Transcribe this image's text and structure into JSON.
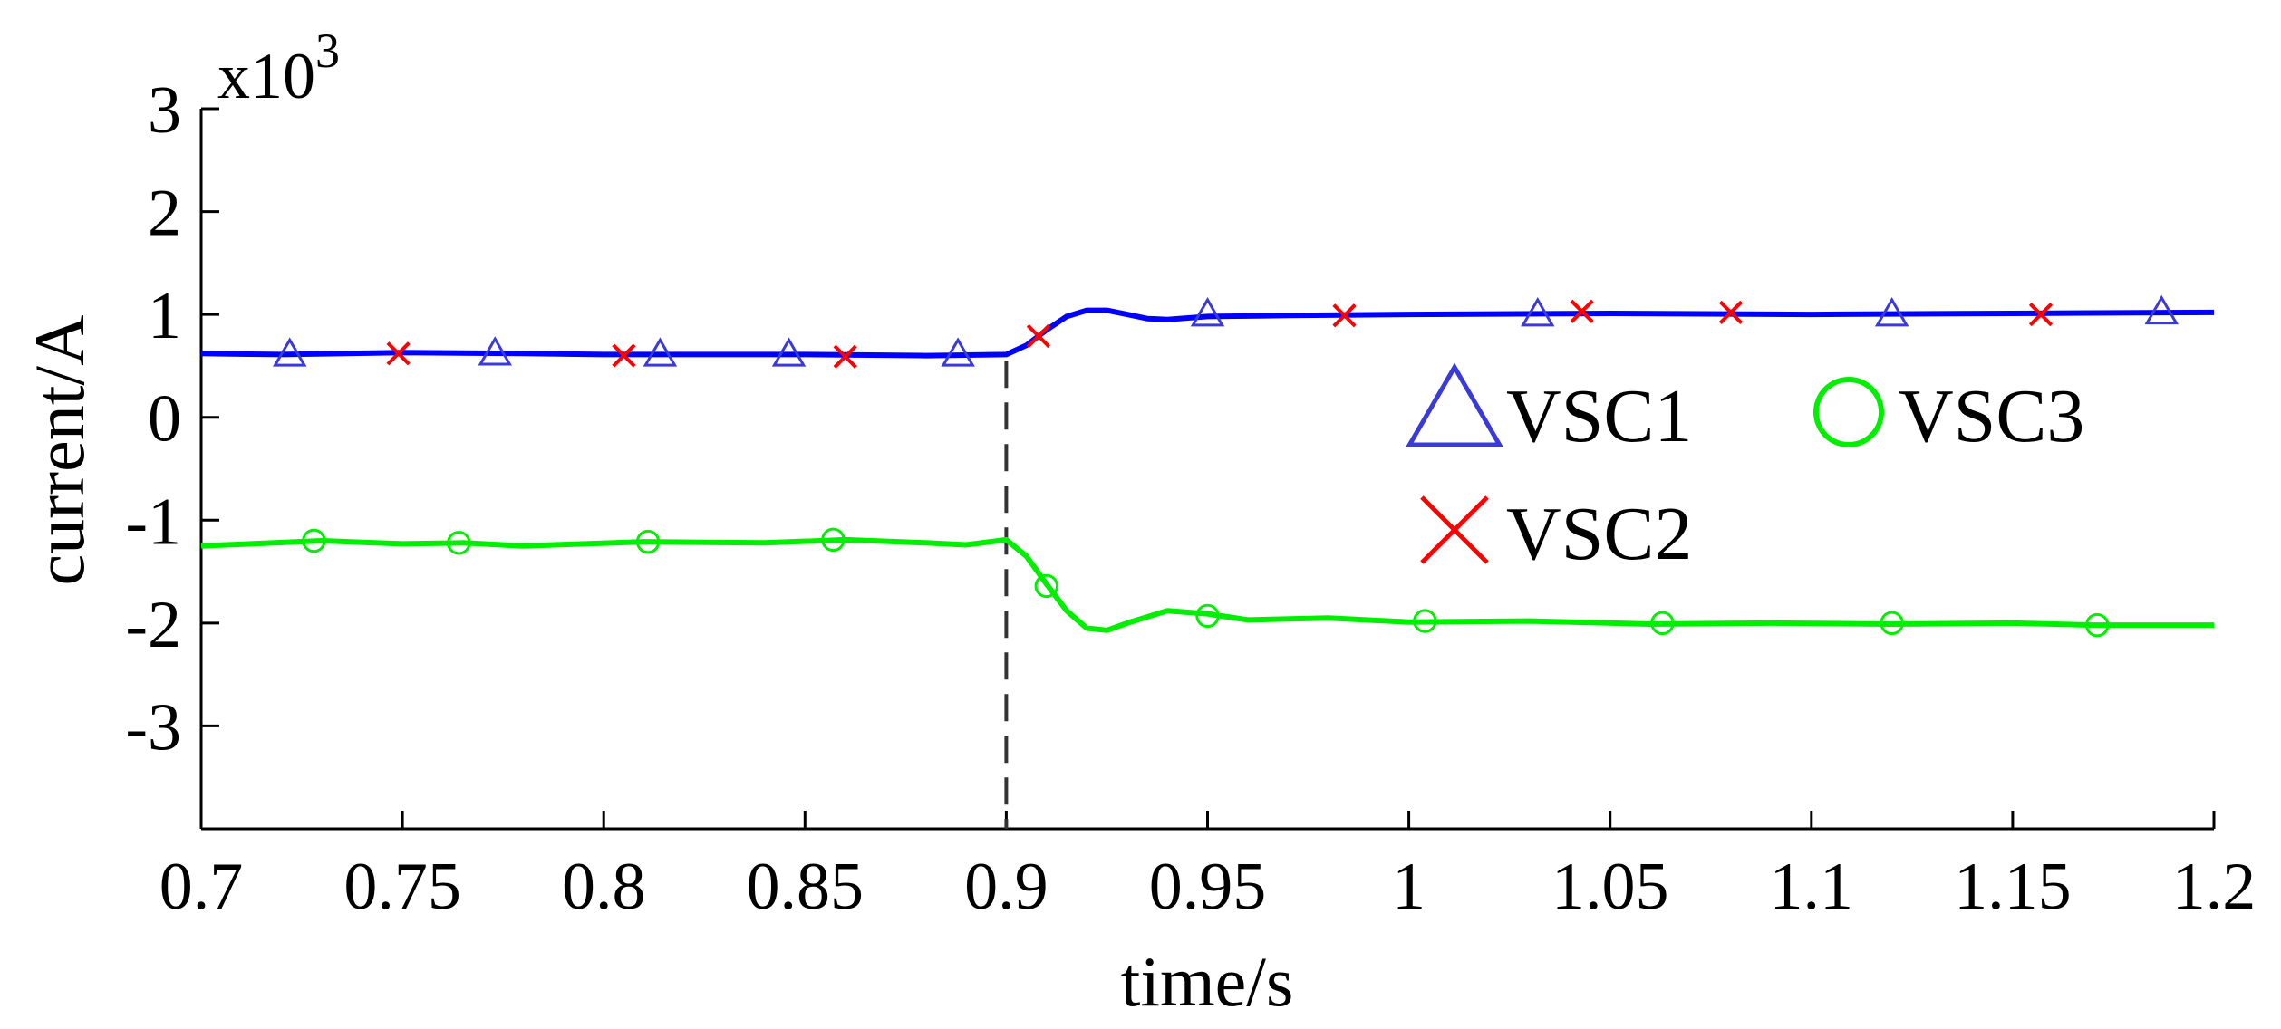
{
  "chart_data": {
    "type": "line",
    "title": "",
    "xlabel": "time/s",
    "ylabel": "current/A",
    "y_scale_label": "x10",
    "y_scale_exponent": "3",
    "xlim": [
      0.7,
      1.2
    ],
    "ylim": [
      -4,
      3
    ],
    "x_ticks": [
      "0.7",
      "0.75",
      "0.8",
      "0.85",
      "0.9",
      "0.95",
      "1",
      "1.05",
      "1.1",
      "1.15",
      "1.2"
    ],
    "y_ticks": [
      "3",
      "2",
      "1",
      "0",
      "-1",
      "-2",
      "-3"
    ],
    "grid": false,
    "event_marker_x": 0.9,
    "legend_position": "center-right",
    "legend": [
      {
        "name": "VSC1",
        "marker": "triangle"
      },
      {
        "name": "VSC3",
        "marker": "circle"
      },
      {
        "name": "VSC2",
        "marker": "cross"
      }
    ],
    "series": [
      {
        "name": "VSC1",
        "color": "#0000ff",
        "marker_color": "#3a3ad8",
        "marker": "triangle",
        "x": [
          0.7,
          0.72,
          0.75,
          0.78,
          0.8,
          0.85,
          0.88,
          0.9,
          0.905,
          0.91,
          0.915,
          0.92,
          0.925,
          0.93,
          0.935,
          0.94,
          0.95,
          0.97,
          1.0,
          1.05,
          1.1,
          1.15,
          1.2
        ],
        "y": [
          0.62,
          0.61,
          0.63,
          0.62,
          0.61,
          0.61,
          0.6,
          0.61,
          0.7,
          0.85,
          0.98,
          1.04,
          1.04,
          1.0,
          0.96,
          0.95,
          0.98,
          0.99,
          1.0,
          1.01,
          1.0,
          1.01,
          1.02
        ],
        "marker_x": [
          0.722,
          0.773,
          0.814,
          0.846,
          0.888,
          0.95,
          1.032,
          1.12,
          1.187
        ],
        "marker_y": [
          0.61,
          0.62,
          0.61,
          0.61,
          0.61,
          1.0,
          1.0,
          1.0,
          1.02
        ]
      },
      {
        "name": "VSC2",
        "color": "#0000ff",
        "marker_color": "#ff0000",
        "marker": "cross",
        "x": [],
        "y": [],
        "marker_x": [
          0.749,
          0.805,
          0.86,
          0.908,
          0.984,
          1.043,
          1.08,
          1.157
        ],
        "marker_y": [
          0.62,
          0.6,
          0.59,
          0.79,
          0.99,
          1.03,
          1.02,
          1.0
        ]
      },
      {
        "name": "VSC3",
        "color": "#00ee00",
        "marker_color": "#00ee00",
        "marker": "circle",
        "x": [
          0.7,
          0.73,
          0.75,
          0.765,
          0.78,
          0.81,
          0.84,
          0.86,
          0.88,
          0.89,
          0.9,
          0.905,
          0.91,
          0.915,
          0.92,
          0.925,
          0.93,
          0.94,
          0.95,
          0.96,
          0.98,
          1.0,
          1.03,
          1.06,
          1.09,
          1.12,
          1.15,
          1.17,
          1.2
        ],
        "y": [
          -1.25,
          -1.2,
          -1.23,
          -1.22,
          -1.25,
          -1.21,
          -1.22,
          -1.19,
          -1.22,
          -1.24,
          -1.19,
          -1.35,
          -1.62,
          -1.88,
          -2.05,
          -2.07,
          -2.0,
          -1.88,
          -1.91,
          -1.97,
          -1.95,
          -1.99,
          -1.98,
          -2.01,
          -2.0,
          -2.01,
          -2.0,
          -2.02,
          -2.02
        ],
        "marker_x": [
          0.728,
          0.764,
          0.811,
          0.857,
          0.91,
          0.95,
          1.004,
          1.063,
          1.12,
          1.171
        ],
        "marker_y": [
          -1.2,
          -1.22,
          -1.21,
          -1.19,
          -1.64,
          -1.93,
          -1.98,
          -2.0,
          -2.0,
          -2.02
        ]
      }
    ]
  }
}
